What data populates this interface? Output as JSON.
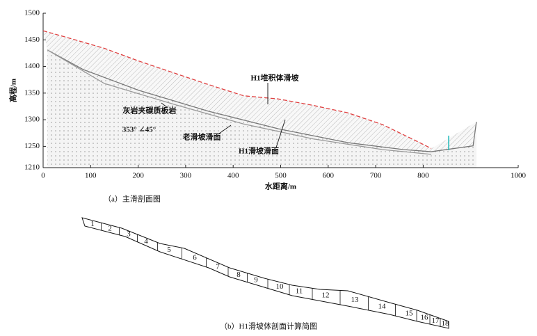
{
  "chart_data": {
    "type": "line",
    "xlabel": "水距离/m",
    "ylabel": "高程/m",
    "caption": "（a）主滑剖面图",
    "xlim": [
      0,
      1000
    ],
    "xticks": [
      0,
      100,
      200,
      300,
      400,
      500,
      600,
      700,
      800,
      1000
    ],
    "ylim": [
      1210,
      1500
    ],
    "yticks": [
      1210,
      1250,
      1300,
      1350,
      1400,
      1450,
      1500
    ],
    "annotations": [
      "H1堆积体滑坡",
      "灰岩夹碳质板岩",
      "353° ∠45°",
      "老滑坡滑面",
      "H1滑坡滑面"
    ],
    "series": [
      {
        "color": "#e04040",
        "dashed": true,
        "x": [
          0,
          56,
          129,
          202,
          275,
          348,
          422,
          495,
          568,
          641,
          714,
          788,
          817
        ],
        "values": [
          1467,
          1453,
          1434,
          1410,
          1388,
          1366,
          1345,
          1339,
          1327,
          1313,
          1291,
          1259,
          1246
        ]
      },
      {
        "color": "#777777",
        "dashed": false,
        "x": [
          9,
          85,
          202,
          348,
          495,
          641,
          758,
          817,
          905,
          912
        ],
        "values": [
          1431,
          1394,
          1355,
          1316,
          1283,
          1257,
          1244,
          1240,
          1251,
          1296
        ]
      },
      {
        "color": "#999999",
        "dashed": false,
        "x": [
          9,
          129,
          275,
          422,
          568,
          714,
          817
        ],
        "values": [
          1431,
          1368,
          1329,
          1292,
          1264,
          1244,
          1235
        ]
      }
    ]
  },
  "section_b": {
    "caption": "（b）H1滑坡体剖面计算简图",
    "slice_labels": [
      "1",
      "2",
      "3",
      "4",
      "5",
      "6",
      "7",
      "8",
      "9",
      "10",
      "11",
      "12",
      "13",
      "14",
      "15",
      "16",
      "17",
      "18"
    ]
  }
}
